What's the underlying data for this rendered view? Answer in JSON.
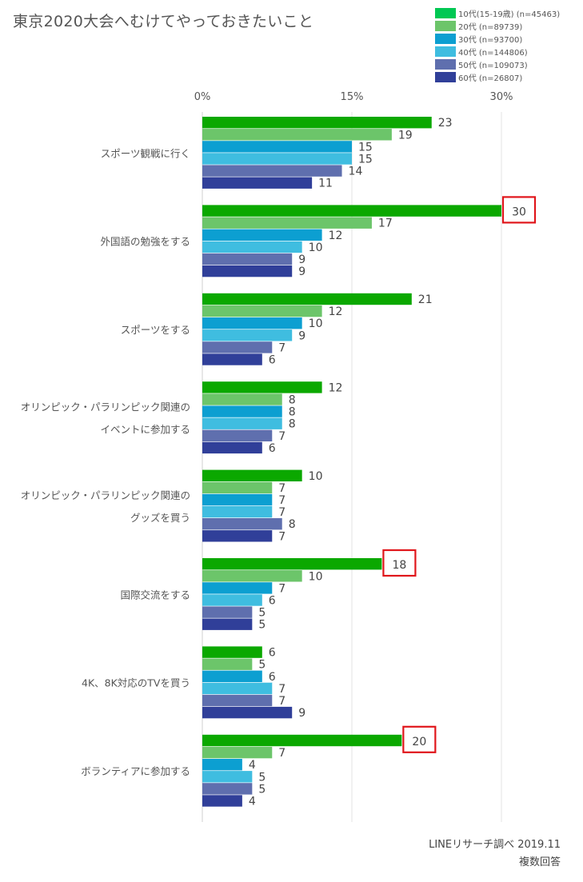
{
  "title": "東京2020大会へむけてやっておきたいこと",
  "source_lines": [
    "LINEリサーチ調べ 2019.11",
    "複数回答"
  ],
  "chart_data": {
    "type": "bar",
    "orientation": "horizontal",
    "title": "東京2020大会へむけてやっておきたいこと",
    "xlim": [
      0,
      30
    ],
    "ticks": [
      "0%",
      "15%",
      "30%"
    ],
    "tick_values": [
      0,
      15,
      30
    ],
    "grid": true,
    "legend_position": "top-right",
    "categories": [
      [
        "スポーツ観戦に行く"
      ],
      [
        "外国語の勉強をする"
      ],
      [
        "スポーツをする"
      ],
      [
        "オリンピック・パラリンピック関連の",
        "イベントに参加する"
      ],
      [
        "オリンピック・パラリンピック関連の",
        "グッズを買う"
      ],
      [
        "国際交流をする"
      ],
      [
        "4K、8K対応のTVを買う"
      ],
      [
        "ボランティアに参加する"
      ]
    ],
    "series": [
      {
        "name": "10代(15-19歳) (n=45463)",
        "color": "#0ba800",
        "values": [
          23,
          30,
          21,
          12,
          10,
          18,
          6,
          20
        ]
      },
      {
        "name": "20代 (n=89739)",
        "color": "#6cc56a",
        "values": [
          19,
          17,
          12,
          8,
          7,
          10,
          5,
          7
        ]
      },
      {
        "name": "30代 (n=93700)",
        "color": "#0c9fd1",
        "values": [
          15,
          12,
          10,
          8,
          7,
          7,
          6,
          4
        ]
      },
      {
        "name": "40代 (n=144806)",
        "color": "#3fbde0",
        "values": [
          15,
          10,
          9,
          8,
          7,
          6,
          7,
          5
        ]
      },
      {
        "name": "50代 (n=109073)",
        "color": "#5f6fae",
        "values": [
          14,
          9,
          7,
          7,
          8,
          5,
          7,
          5
        ]
      },
      {
        "name": "60代 (n=26807)",
        "color": "#303f99",
        "values": [
          11,
          9,
          6,
          6,
          7,
          5,
          9,
          4
        ]
      }
    ],
    "highlighted": [
      {
        "category_index": 1,
        "series_index": 0
      },
      {
        "category_index": 5,
        "series_index": 0
      },
      {
        "category_index": 7,
        "series_index": 0
      }
    ],
    "legend_color_10s": "#00c853"
  }
}
